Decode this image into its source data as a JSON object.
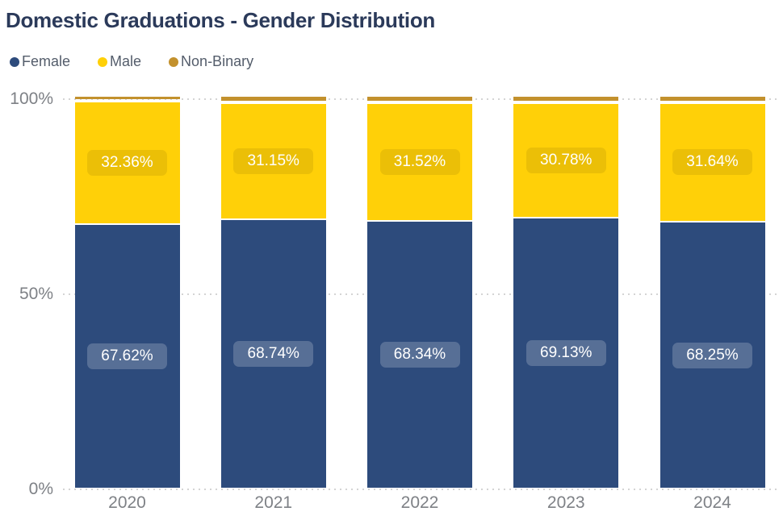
{
  "title": "Domestic Graduations - Gender Distribution",
  "colors": {
    "background": "#FFFFFF",
    "title_text": "#2B3A5A",
    "legend_text": "#545D6B",
    "axis_text": "#7E8186",
    "gridline": "#D4D4D4",
    "data_label_text": "#FFFFFF",
    "female": "#2D4B7C",
    "male": "#FFD008",
    "non_binary": "#C3912D"
  },
  "chart_data": {
    "type": "bar",
    "variant": "100-percent-stacked-column",
    "title": "Domestic Graduations - Gender Distribution",
    "categories": [
      "2020",
      "2021",
      "2022",
      "2023",
      "2024"
    ],
    "series": [
      {
        "name": "Female",
        "color": "#2D4B7C",
        "values": [
          67.62,
          68.74,
          68.34,
          69.13,
          68.25
        ],
        "data_labels": [
          "67.62%",
          "68.74%",
          "68.34%",
          "69.13%",
          "68.25%"
        ]
      },
      {
        "name": "Male",
        "color": "#FFD008",
        "values": [
          32.36,
          31.15,
          31.52,
          30.78,
          31.64
        ],
        "data_labels": [
          "32.36%",
          "31.15%",
          "31.52%",
          "30.78%",
          "31.64%"
        ]
      },
      {
        "name": "Non-Binary",
        "color": "#C3912D",
        "values": [
          0.02,
          0.11,
          0.14,
          0.09,
          0.11
        ],
        "data_labels": []
      }
    ],
    "y_axis": {
      "ticks": [
        {
          "label": "0%",
          "value": 0
        },
        {
          "label": "50%",
          "value": 50
        },
        {
          "label": "100%",
          "value": 100
        }
      ],
      "range": [
        0,
        100
      ]
    },
    "legend_position": "top-left",
    "grid": "horizontal-dotted"
  }
}
